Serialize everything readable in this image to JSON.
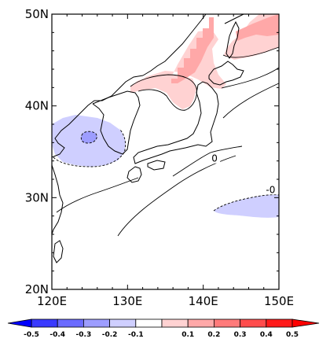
{
  "map": {
    "lat_labels": [
      "50N",
      "40N",
      "30N",
      "20N"
    ],
    "lon_labels": [
      "120E",
      "130E",
      "140E",
      "150E"
    ],
    "contour_labels": [
      {
        "text": "0",
        "lon": 141.5,
        "lat": 34.0
      },
      {
        "text": "-0",
        "lon": 148.9,
        "lat": 30.6
      }
    ],
    "colorbar": {
      "ticks": [
        "-0.5",
        "-0.4",
        "-0.3",
        "-0.2",
        "-0.1",
        "0.1",
        "0.2",
        "0.3",
        "0.4",
        "0.5"
      ],
      "colors": [
        "#3a3aff",
        "#6b6bff",
        "#9d9dff",
        "#cfcfff",
        "#ffffff",
        "#ffd2d2",
        "#ffa8a8",
        "#ff7a7a",
        "#ff4c4c",
        "#ff1a1a"
      ],
      "end_left_color": "#0000ff",
      "end_right_color": "#ff0000"
    }
  }
}
